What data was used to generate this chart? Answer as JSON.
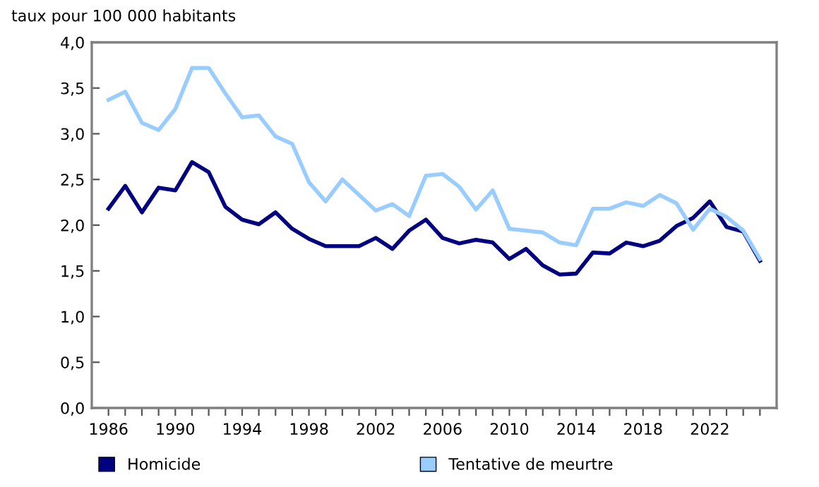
{
  "chart_data": {
    "type": "line",
    "ylabel": "taux pour 100 000 habitants",
    "x": [
      1986,
      1987,
      1988,
      1989,
      1990,
      1991,
      1992,
      1993,
      1994,
      1995,
      1996,
      1997,
      1998,
      1999,
      2000,
      2001,
      2002,
      2003,
      2004,
      2005,
      2006,
      2007,
      2008,
      2009,
      2010,
      2011,
      2012,
      2013,
      2014,
      2015,
      2016,
      2017,
      2018,
      2019,
      2020,
      2021,
      2022,
      2023,
      2024,
      2025
    ],
    "series": [
      {
        "name": "Homicide",
        "color": "#000080",
        "values": [
          2.18,
          2.43,
          2.14,
          2.41,
          2.38,
          2.69,
          2.58,
          2.2,
          2.06,
          2.01,
          2.14,
          1.96,
          1.85,
          1.77,
          1.77,
          1.77,
          1.86,
          1.74,
          1.94,
          2.06,
          1.86,
          1.8,
          1.84,
          1.81,
          1.63,
          1.74,
          1.56,
          1.46,
          1.47,
          1.7,
          1.69,
          1.81,
          1.77,
          1.83,
          1.99,
          2.08,
          2.26,
          1.98,
          1.93,
          1.61
        ]
      },
      {
        "name": "Tentative de meurtre",
        "color": "#99ccff",
        "values": [
          3.37,
          3.46,
          3.12,
          3.04,
          3.27,
          3.72,
          3.72,
          3.44,
          3.18,
          3.2,
          2.97,
          2.89,
          2.47,
          2.26,
          2.5,
          2.33,
          2.16,
          2.23,
          2.1,
          2.54,
          2.56,
          2.42,
          2.17,
          2.38,
          1.96,
          1.94,
          1.92,
          1.81,
          1.78,
          2.18,
          2.18,
          2.25,
          2.21,
          2.33,
          2.24,
          1.95,
          2.18,
          2.09,
          1.94,
          1.63
        ]
      }
    ],
    "xlim": [
      1985,
      2026
    ],
    "xticks": [
      {
        "value": 1986,
        "label": "1986"
      },
      {
        "value": 1987,
        "label": null
      },
      {
        "value": 1988,
        "label": null
      },
      {
        "value": 1989,
        "label": null
      },
      {
        "value": 1990,
        "label": "1990"
      },
      {
        "value": 1991,
        "label": null
      },
      {
        "value": 1992,
        "label": null
      },
      {
        "value": 1993,
        "label": null
      },
      {
        "value": 1994,
        "label": "1994"
      },
      {
        "value": 1995,
        "label": null
      },
      {
        "value": 1996,
        "label": null
      },
      {
        "value": 1997,
        "label": null
      },
      {
        "value": 1998,
        "label": "1998"
      },
      {
        "value": 1999,
        "label": null
      },
      {
        "value": 2000,
        "label": null
      },
      {
        "value": 2001,
        "label": null
      },
      {
        "value": 2002,
        "label": "2002"
      },
      {
        "value": 2003,
        "label": null
      },
      {
        "value": 2004,
        "label": null
      },
      {
        "value": 2005,
        "label": null
      },
      {
        "value": 2006,
        "label": "2006"
      },
      {
        "value": 2007,
        "label": null
      },
      {
        "value": 2008,
        "label": null
      },
      {
        "value": 2009,
        "label": null
      },
      {
        "value": 2010,
        "label": "2010"
      },
      {
        "value": 2011,
        "label": null
      },
      {
        "value": 2012,
        "label": null
      },
      {
        "value": 2013,
        "label": null
      },
      {
        "value": 2014,
        "label": "2014"
      },
      {
        "value": 2015,
        "label": null
      },
      {
        "value": 2016,
        "label": null
      },
      {
        "value": 2017,
        "label": null
      },
      {
        "value": 2018,
        "label": "2018"
      },
      {
        "value": 2019,
        "label": null
      },
      {
        "value": 2020,
        "label": null
      },
      {
        "value": 2021,
        "label": null
      },
      {
        "value": 2022,
        "label": "2022"
      },
      {
        "value": 2023,
        "label": null
      },
      {
        "value": 2024,
        "label": null
      },
      {
        "value": 2025,
        "label": null
      }
    ],
    "ylim": [
      0,
      4
    ],
    "yticks": [
      {
        "value": 0,
        "label": "0,0"
      },
      {
        "value": 0.5,
        "label": "0,5"
      },
      {
        "value": 1,
        "label": "1,0"
      },
      {
        "value": 1.5,
        "label": "1,5"
      },
      {
        "value": 2,
        "label": "2,0"
      },
      {
        "value": 2.5,
        "label": "2,5"
      },
      {
        "value": 3,
        "label": "3,0"
      },
      {
        "value": 3.5,
        "label": "3,5"
      },
      {
        "value": 4,
        "label": "4,0"
      }
    ],
    "grid": false,
    "legend": "bottom",
    "marker": "none",
    "line_style": "solid"
  }
}
